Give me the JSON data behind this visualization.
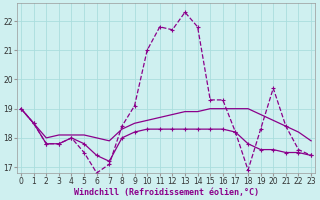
{
  "x": [
    0,
    1,
    2,
    3,
    4,
    5,
    6,
    7,
    8,
    9,
    10,
    11,
    12,
    13,
    14,
    15,
    16,
    17,
    18,
    19,
    20,
    21,
    22,
    23
  ],
  "series1": [
    19.0,
    18.5,
    17.8,
    17.8,
    18.0,
    17.5,
    16.8,
    17.1,
    18.4,
    19.1,
    21.0,
    21.8,
    21.7,
    22.3,
    21.8,
    19.3,
    19.3,
    18.2,
    16.9,
    18.3,
    19.7,
    18.4,
    17.6,
    17.4
  ],
  "series2": [
    19.0,
    18.5,
    18.0,
    18.1,
    18.1,
    18.1,
    18.0,
    17.9,
    18.3,
    18.5,
    18.6,
    18.7,
    18.8,
    18.9,
    18.9,
    19.0,
    19.0,
    19.0,
    19.0,
    18.8,
    18.6,
    18.4,
    18.2,
    17.9
  ],
  "series3": [
    19.0,
    18.5,
    17.8,
    17.8,
    18.0,
    17.8,
    17.4,
    17.2,
    18.0,
    18.2,
    18.3,
    18.3,
    18.3,
    18.3,
    18.3,
    18.3,
    18.3,
    18.2,
    17.8,
    17.6,
    17.6,
    17.5,
    17.5,
    17.4
  ],
  "color": "#8B008B",
  "background": "#cff0f0",
  "grid_color": "#aadddd",
  "xlabel": "Windchill (Refroidissement éolien,°C)",
  "ylim": [
    16.8,
    22.6
  ],
  "yticks": [
    17,
    18,
    19,
    20,
    21,
    22
  ],
  "xticks": [
    0,
    1,
    2,
    3,
    4,
    5,
    6,
    7,
    8,
    9,
    10,
    11,
    12,
    13,
    14,
    15,
    16,
    17,
    18,
    19,
    20,
    21,
    22,
    23
  ],
  "tick_fontsize": 5.5,
  "xlabel_fontsize": 6.0
}
